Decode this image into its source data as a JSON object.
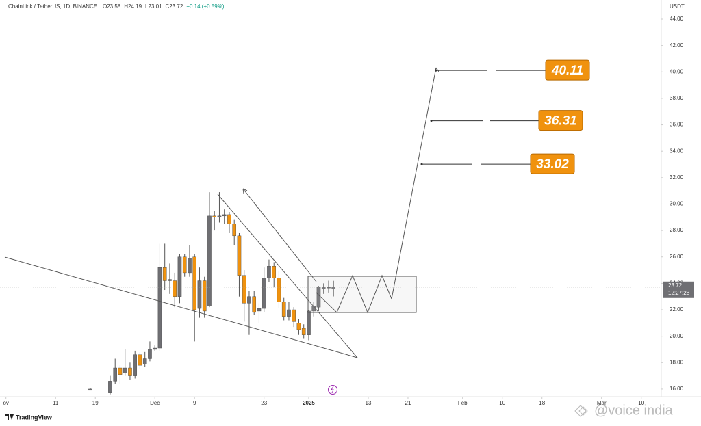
{
  "chart_data": {
    "type": "candlestick",
    "title": "ChainLink / TetherUS, 1D, BINANCE",
    "header_values": [
      "O23.58",
      "H24.19",
      "L23.01",
      "C23.72",
      "+0.14 (+0.59%)"
    ],
    "y_axis_unit": "USDT",
    "countdown": "12:27:28",
    "brand": "TradingView",
    "watermark": "@voice india",
    "up_color": "#6f6f73",
    "down_color": "#f0920e",
    "xlim": [
      -31.2,
      101.9
    ],
    "xticks": [
      {
        "value": -30,
        "label": "ov"
      },
      {
        "value": -20,
        "label": "11"
      },
      {
        "value": -12,
        "label": "19"
      },
      {
        "value": 0,
        "label": "Dec"
      },
      {
        "value": 8,
        "label": "9"
      },
      {
        "value": 22,
        "label": "23"
      },
      {
        "value": 31,
        "label": "2025"
      },
      {
        "value": 43,
        "label": "13"
      },
      {
        "value": 51,
        "label": "21"
      },
      {
        "value": 62,
        "label": "Feb"
      },
      {
        "value": 70,
        "label": "10"
      },
      {
        "value": 78,
        "label": "18"
      },
      {
        "value": 90,
        "label": "Mar"
      },
      {
        "value": 98,
        "label": "10"
      }
    ],
    "ylim": [
      15.53,
      45.45
    ],
    "yticks": [
      {
        "value": 16,
        "label": "16.00"
      },
      {
        "value": 18,
        "label": "18.00"
      },
      {
        "value": 20,
        "label": "20.00"
      },
      {
        "value": 22,
        "label": "22.00"
      },
      {
        "value": 24,
        "label": "24.00"
      },
      {
        "value": 26,
        "label": "26.00"
      },
      {
        "value": 28,
        "label": "28.00"
      },
      {
        "value": 30,
        "label": "30.00"
      },
      {
        "value": 32,
        "label": "32.00"
      },
      {
        "value": 34,
        "label": "34.00"
      },
      {
        "value": 36,
        "label": "36.00"
      },
      {
        "value": 38,
        "label": "38.00"
      },
      {
        "value": 40,
        "label": "40.00"
      },
      {
        "value": 42,
        "label": "42.00"
      },
      {
        "value": 44,
        "label": "44.00"
      }
    ],
    "candles": {
      "x": [
        -13,
        -9,
        -8,
        -7,
        -6,
        -5,
        -4,
        -3,
        -2,
        -1,
        0,
        1,
        2,
        3,
        4,
        5,
        6,
        7,
        8,
        9,
        10,
        11,
        12,
        13,
        14,
        15,
        16,
        17,
        18,
        19,
        20,
        21,
        22,
        23,
        24,
        25,
        26,
        27,
        28,
        29,
        30,
        31,
        32,
        33,
        34,
        35,
        36
      ],
      "open": [
        15.9,
        15.7,
        16.6,
        17.6,
        17.2,
        17.6,
        17.0,
        18.6,
        17.9,
        18.3,
        19.0,
        19.1,
        25.2,
        24.2,
        24.2,
        23.0,
        26.0,
        24.8,
        26.0,
        22.1,
        24.2,
        22.3,
        29.1,
        29.0,
        29.1,
        29.2,
        28.5,
        27.6,
        24.6,
        22.5,
        23.0,
        21.9,
        22.1,
        24.4,
        25.3,
        24.4,
        22.6,
        21.5,
        22.0,
        21.0,
        20.6,
        20.1,
        21.9,
        22.2,
        23.6,
        23.7,
        23.58
      ],
      "high": [
        16.1,
        17.0,
        18.3,
        17.8,
        19.0,
        18.0,
        18.9,
        18.8,
        18.8,
        19.6,
        19.3,
        27.0,
        27.0,
        25.5,
        24.8,
        26.2,
        26.2,
        26.9,
        26.2,
        25.2,
        24.5,
        30.9,
        29.5,
        30.9,
        29.6,
        29.4,
        28.8,
        27.8,
        25.0,
        23.4,
        23.4,
        22.5,
        25.2,
        25.8,
        25.6,
        24.9,
        22.9,
        22.6,
        22.2,
        21.3,
        20.9,
        22.0,
        22.6,
        23.8,
        24.0,
        24.2,
        24.19
      ],
      "low": [
        15.9,
        15.6,
        16.4,
        16.4,
        17.0,
        16.7,
        16.8,
        17.5,
        17.7,
        18.1,
        18.9,
        18.9,
        23.5,
        23.2,
        22.2,
        22.5,
        24.5,
        24.5,
        19.6,
        21.4,
        21.4,
        22.2,
        28.0,
        28.6,
        28.5,
        27.8,
        26.9,
        23.0,
        21.1,
        20.1,
        21.6,
        21.0,
        21.8,
        24.1,
        23.7,
        22.1,
        21.2,
        21.2,
        20.7,
        20.1,
        19.8,
        19.7,
        21.5,
        21.9,
        23.2,
        23.3,
        23.01
      ],
      "close": [
        16.0,
        16.6,
        17.6,
        17.1,
        17.6,
        17.0,
        18.6,
        17.8,
        18.3,
        19.0,
        19.1,
        25.2,
        24.2,
        24.3,
        23.0,
        26.0,
        24.8,
        25.9,
        22.0,
        24.2,
        21.9,
        29.1,
        29.0,
        29.1,
        29.2,
        28.5,
        27.6,
        24.6,
        22.5,
        23.0,
        21.8,
        22.1,
        24.4,
        25.3,
        24.4,
        22.6,
        21.5,
        22.0,
        21.1,
        20.5,
        20.1,
        21.9,
        22.3,
        23.7,
        23.7,
        23.7,
        23.72
      ]
    },
    "targets": [
      33.02,
      36.31,
      40.11
    ]
  }
}
